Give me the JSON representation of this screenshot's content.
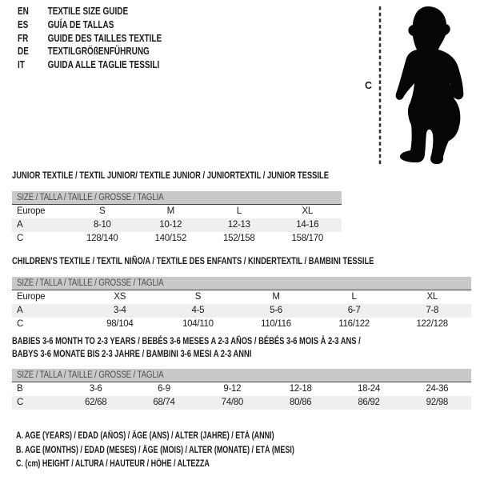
{
  "colors": {
    "header_band": "#c9c9c9",
    "row_shade": "#efefef",
    "header_rule": "#454545",
    "text": "#1b1b1b",
    "band_text": "#4d4d4d",
    "silhouette": "#060606"
  },
  "languages": [
    {
      "code": "EN",
      "title": "TEXTILE SIZE GUIDE"
    },
    {
      "code": "ES",
      "title": "GUÍA DE TALLAS"
    },
    {
      "code": "FR",
      "title": "GUIDE DES TAILLES TEXTILE"
    },
    {
      "code": "DE",
      "title": "TEXTILGRÖßENFÜHRUNG"
    },
    {
      "code": "IT",
      "title": "GUIDA ALLE TAGLIE TESSILI"
    }
  ],
  "figure": {
    "icon": "toddler-silhouette",
    "label": "C"
  },
  "tables": [
    {
      "title_lines": [
        "JUNIOR TEXTILE / TEXTIL JUNIOR/ TEXTILE JUNIOR / JUNIORTEXTIL / JUNIOR TESSILE"
      ],
      "size_header": "SIZE / TALLA / TAILLE / GRÖSSE / TAGLIA",
      "rows": [
        {
          "label": "Europe",
          "values": [
            "S",
            "M",
            "L",
            "XL"
          ],
          "shaded": false
        },
        {
          "label": "A",
          "values": [
            "8-10",
            "10-12",
            "12-13",
            "14-16"
          ],
          "shaded": true
        },
        {
          "label": "C",
          "values": [
            "128/140",
            "140/152",
            "152/158",
            "158/170"
          ],
          "shaded": false
        }
      ]
    },
    {
      "title_lines": [
        "CHILDREN'S TEXTILE / TEXTIL NIÑO/A / TEXTILE DES ENFANTS / KINDERTEXTIL / BAMBINI TESSILE"
      ],
      "size_header": "SIZE / TALLA / TAILLE / GRÖSSE / TAGLIA",
      "rows": [
        {
          "label": "Europe",
          "values": [
            "XS",
            "S",
            "M",
            "L",
            "XL"
          ],
          "shaded": false
        },
        {
          "label": "A",
          "values": [
            "3-4",
            "4-5",
            "5-6",
            "6-7",
            "7-8"
          ],
          "shaded": true
        },
        {
          "label": "C",
          "values": [
            "98/104",
            "104/110",
            "110/116",
            "116/122",
            "122/128"
          ],
          "shaded": false
        }
      ]
    },
    {
      "title_lines": [
        "BABIES 3-6 MONTH TO 2-3 YEARS / BEBÉS 3-6 MESES A 2-3 AÑOS / BÉBÉS 3-6 MOIS À 2-3 ANS /",
        "BABYS 3-6 MONATE BIS 2-3 JAHRE / BAMBINI 3-6 MESI A 2-3 ANNI"
      ],
      "size_header": "SIZE / TALLA / TAILLE / GRÖSSE / TAGLIA",
      "rows": [
        {
          "label": "B",
          "values": [
            "3-6",
            "6-9",
            "9-12",
            "12-18",
            "18-24",
            "24-36"
          ],
          "shaded": false
        },
        {
          "label": "C",
          "values": [
            "62/68",
            "68/74",
            "74/80",
            "80/86",
            "86/92",
            "92/98"
          ],
          "shaded": true
        }
      ]
    }
  ],
  "footnotes": [
    "A. AGE (YEARS) / EDAD (AÑOS) / ÂGE (ANS) / ALTER (JAHRE) / ETÀ (ANNI)",
    "B. AGE (MONTHS) / EDAD (MESES) / ÂGE (MOIS) / ALTER (MONATE) / ETÀ (MESI)",
    "C. (cm) HEIGHT / ALTURA / HAUTEUR / HÖHE / ALTEZZA"
  ]
}
